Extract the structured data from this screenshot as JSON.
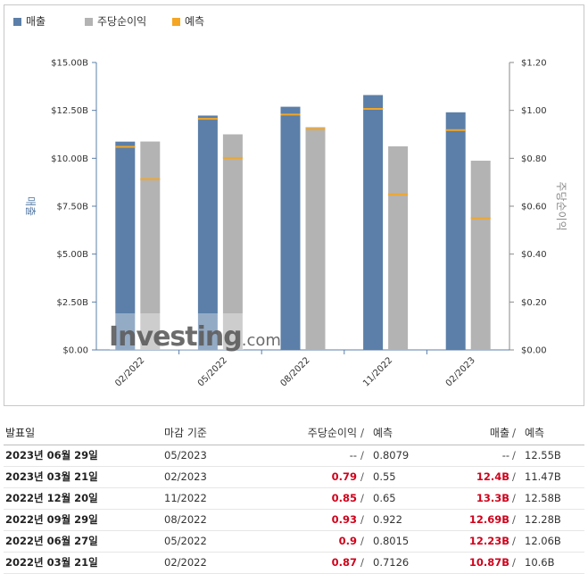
{
  "legend": [
    {
      "label": "매출",
      "color": "#5b7fa8"
    },
    {
      "label": "주당순이익",
      "color": "#b3b3b3"
    },
    {
      "label": "예측",
      "color": "#f5a623"
    }
  ],
  "chart_data": {
    "type": "bar",
    "categories": [
      "02/2022",
      "05/2022",
      "08/2022",
      "11/2022",
      "02/2023"
    ],
    "series": [
      {
        "name": "매출",
        "axis": "left",
        "color": "#5b7fa8",
        "values": [
          10.87,
          12.23,
          12.69,
          13.3,
          12.4
        ],
        "forecast": [
          10.6,
          12.06,
          12.28,
          12.58,
          11.47
        ]
      },
      {
        "name": "주당순이익",
        "axis": "right",
        "color": "#b3b3b3",
        "values": [
          0.87,
          0.9,
          0.93,
          0.85,
          0.79
        ],
        "forecast": [
          0.7126,
          0.8015,
          0.922,
          0.65,
          0.55
        ]
      }
    ],
    "ylabel": "매출",
    "y2label": "주당순이익",
    "ylim": [
      0,
      15
    ],
    "y2lim": [
      0,
      1.2
    ],
    "yticks": [
      "$0.00",
      "$2.50B",
      "$5.00B",
      "$7.50B",
      "$10.00B",
      "$12.50B",
      "$15.00B"
    ],
    "y2ticks": [
      "$0.00",
      "$0.20",
      "$0.40",
      "$0.60",
      "$0.80",
      "$1.00",
      "$1.20"
    ],
    "forecast_color": "#f5a623",
    "grid": false,
    "legend_position": "top-left"
  },
  "watermark": {
    "text": "Investing",
    "suffix": ".com"
  },
  "table": {
    "headers": {
      "date": "발표일",
      "period": "마감 기준",
      "eps": "주당순이익",
      "sep": "/",
      "eps_forecast": "예측",
      "revenue": "매출",
      "revenue_forecast": "예측"
    },
    "rows": [
      {
        "date": "2023년 06월 29일",
        "period": "05/2023",
        "eps": "--",
        "eps_forecast": "0.8079",
        "revenue": "--",
        "revenue_forecast": "12.55B"
      },
      {
        "date": "2023년 03월 21일",
        "period": "02/2023",
        "eps": "0.79",
        "eps_forecast": "0.55",
        "revenue": "12.4B",
        "revenue_forecast": "11.47B"
      },
      {
        "date": "2022년 12월 20일",
        "period": "11/2022",
        "eps": "0.85",
        "eps_forecast": "0.65",
        "revenue": "13.3B",
        "revenue_forecast": "12.58B"
      },
      {
        "date": "2022년 09월 29일",
        "period": "08/2022",
        "eps": "0.93",
        "eps_forecast": "0.922",
        "revenue": "12.69B",
        "revenue_forecast": "12.28B"
      },
      {
        "date": "2022년 06월 27일",
        "period": "05/2022",
        "eps": "0.9",
        "eps_forecast": "0.8015",
        "revenue": "12.23B",
        "revenue_forecast": "12.06B"
      },
      {
        "date": "2022년 03월 21일",
        "period": "02/2022",
        "eps": "0.87",
        "eps_forecast": "0.7126",
        "revenue": "10.87B",
        "revenue_forecast": "10.6B"
      }
    ]
  }
}
